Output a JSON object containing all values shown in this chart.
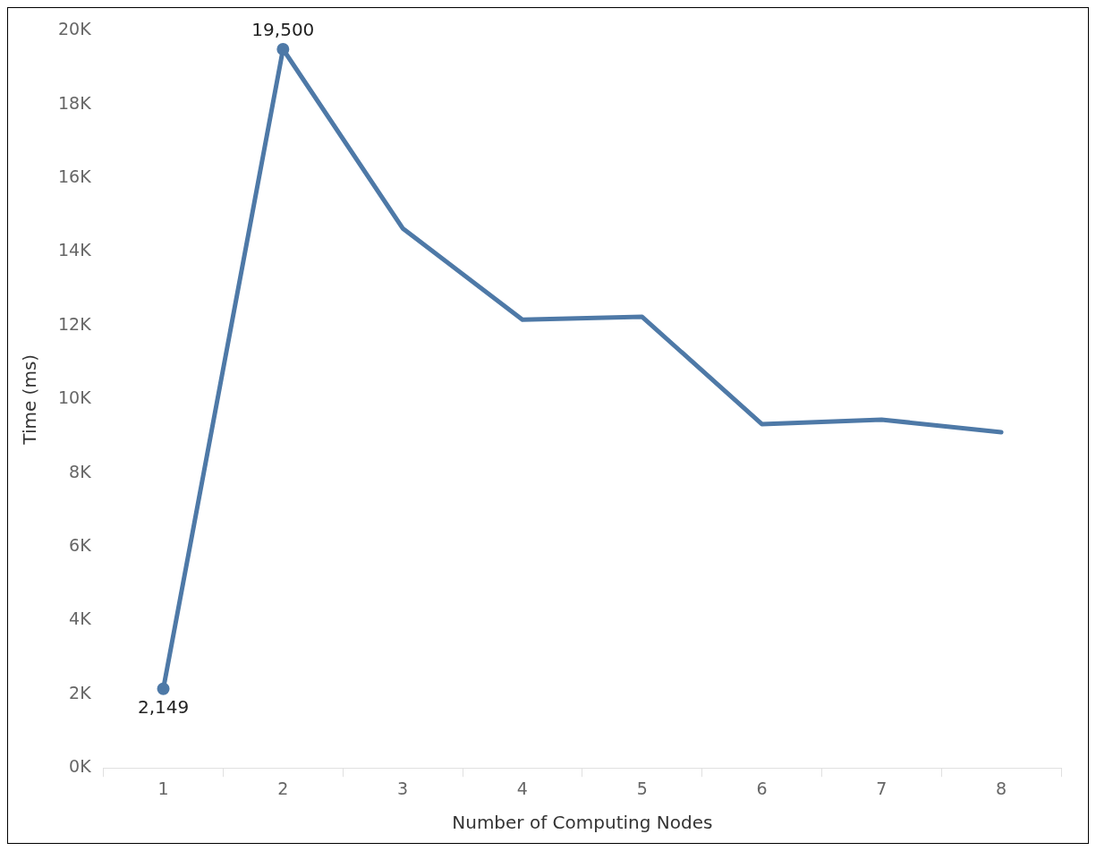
{
  "chart_data": {
    "type": "line",
    "xlabel": "Number of Computing Nodes",
    "ylabel": "Time (ms)",
    "categories": [
      "1",
      "2",
      "3",
      "4",
      "5",
      "6",
      "7",
      "8"
    ],
    "series": [
      {
        "color": "#4e79a7",
        "values": [
          2149,
          19500,
          14640,
          12160,
          12240,
          9330,
          9450,
          9110
        ],
        "value_labels": [
          "2,149",
          "19,500",
          null,
          null,
          null,
          null,
          null,
          null
        ]
      }
    ],
    "ylim": [
      0,
      20000
    ],
    "yticks": [
      {
        "value": 0,
        "label": "0K"
      },
      {
        "value": 2000,
        "label": "2K"
      },
      {
        "value": 4000,
        "label": "4K"
      },
      {
        "value": 6000,
        "label": "6K"
      },
      {
        "value": 8000,
        "label": "8K"
      },
      {
        "value": 10000,
        "label": "10K"
      },
      {
        "value": 12000,
        "label": "12K"
      },
      {
        "value": 14000,
        "label": "14K"
      },
      {
        "value": 16000,
        "label": "16K"
      },
      {
        "value": 18000,
        "label": "18K"
      },
      {
        "value": 20000,
        "label": "20K"
      }
    ],
    "grid": false,
    "legend": false,
    "marker": "none",
    "line_style": "solid"
  }
}
